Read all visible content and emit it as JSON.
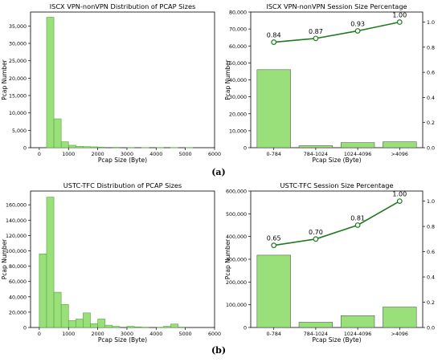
{
  "colors": {
    "bar": "#99e07a",
    "bar_edge": "#58a63d",
    "line": "#1f7a1f"
  },
  "captions": {
    "a": "(a)",
    "b": "(b)"
  },
  "chart_data": [
    {
      "type": "bar",
      "title": "ISCX VPN-nonVPN Distribution of PCAP Sizes",
      "xlabel": "Pcap Size (Byte)",
      "ylabel": "Pcap Number",
      "xlim": [
        -300,
        6000
      ],
      "ylim": [
        0,
        39000
      ],
      "xticks": [
        0,
        1000,
        2000,
        3000,
        4000,
        5000,
        6000
      ],
      "yticks": [
        0,
        5000,
        10000,
        15000,
        20000,
        25000,
        30000,
        35000
      ],
      "ytick_labels": [
        "0",
        "5,000",
        "10,000",
        "15,000",
        "20,000",
        "25,000",
        "30,000",
        "35,000"
      ],
      "bin_width": 250,
      "bins": [
        {
          "x": 250,
          "y": 37500
        },
        {
          "x": 500,
          "y": 8300
        },
        {
          "x": 750,
          "y": 1700
        },
        {
          "x": 1000,
          "y": 700
        },
        {
          "x": 1250,
          "y": 400
        },
        {
          "x": 1500,
          "y": 300
        },
        {
          "x": 1750,
          "y": 250
        },
        {
          "x": 2000,
          "y": 150
        },
        {
          "x": 2500,
          "y": 100
        },
        {
          "x": 3000,
          "y": 60
        },
        {
          "x": 3500,
          "y": 40
        },
        {
          "x": 4000,
          "y": 30
        },
        {
          "x": 4500,
          "y": 20
        },
        {
          "x": 5000,
          "y": 20
        }
      ]
    },
    {
      "type": "bar",
      "title": "ISCX VPN-nonVPN Session Size Percentage",
      "xlabel": "Pcap Size (Byte)",
      "ylabel": "Pcap Number",
      "categories": [
        "0-784",
        "784-1024",
        "1024-4096",
        ">4096"
      ],
      "values": [
        46000,
        1200,
        3000,
        3500
      ],
      "ylim": [
        0,
        80000
      ],
      "yticks": [
        0,
        10000,
        20000,
        30000,
        40000,
        50000,
        60000,
        70000,
        80000
      ],
      "ytick_labels": [
        "0",
        "10,000",
        "20,000",
        "30,000",
        "40,000",
        "50,000",
        "60,000",
        "70,000",
        "80,000"
      ],
      "y2lim": [
        0,
        1.08
      ],
      "y2ticks": [
        0.0,
        0.2,
        0.4,
        0.6,
        0.8,
        1.0
      ],
      "y2tick_labels": [
        "0.0",
        "0.2",
        "0.4",
        "0.6",
        "0.8",
        "1.0"
      ],
      "line_values": [
        0.84,
        0.87,
        0.93,
        1.0
      ],
      "line_labels": [
        "0.84",
        "0.87",
        "0.93",
        "1.00"
      ]
    },
    {
      "type": "bar",
      "title": "USTC-TFC Distribution of PCAP Sizes",
      "xlabel": "Pcap Size (Byte)",
      "ylabel": "Pcap Number",
      "xlim": [
        -300,
        6000
      ],
      "ylim": [
        0,
        178000
      ],
      "xticks": [
        0,
        1000,
        2000,
        3000,
        4000,
        5000,
        6000
      ],
      "yticks": [
        0,
        20000,
        40000,
        60000,
        80000,
        100000,
        120000,
        140000,
        160000
      ],
      "ytick_labels": [
        "0",
        "20,000",
        "40,000",
        "60,000",
        "80,000",
        "100,000",
        "120,000",
        "140,000",
        "160,000"
      ],
      "bin_width": 250,
      "bins": [
        {
          "x": 0,
          "y": 96000
        },
        {
          "x": 250,
          "y": 170000
        },
        {
          "x": 500,
          "y": 46000
        },
        {
          "x": 750,
          "y": 30000
        },
        {
          "x": 1000,
          "y": 9000
        },
        {
          "x": 1250,
          "y": 11000
        },
        {
          "x": 1500,
          "y": 19000
        },
        {
          "x": 1750,
          "y": 5000
        },
        {
          "x": 2000,
          "y": 11000
        },
        {
          "x": 2250,
          "y": 3000
        },
        {
          "x": 2500,
          "y": 1500
        },
        {
          "x": 3000,
          "y": 1500
        },
        {
          "x": 3250,
          "y": 800
        },
        {
          "x": 3500,
          "y": 400
        },
        {
          "x": 4000,
          "y": 300
        },
        {
          "x": 4250,
          "y": 1500
        },
        {
          "x": 4500,
          "y": 4500
        },
        {
          "x": 4750,
          "y": 500
        }
      ]
    },
    {
      "type": "bar",
      "title": "USTC-TFC Session Size Percentage",
      "xlabel": "Pcap Size (Byte)",
      "ylabel": "Pcap Number",
      "categories": [
        "0-784",
        "784-1024",
        "1024-4096",
        ">4096"
      ],
      "values": [
        318000,
        23000,
        52000,
        90000
      ],
      "ylim": [
        0,
        600000
      ],
      "yticks": [
        0,
        100000,
        200000,
        300000,
        400000,
        500000,
        600000
      ],
      "ytick_labels": [
        "0",
        "100,000",
        "200,000",
        "300,000",
        "400,000",
        "500,000",
        "600,000"
      ],
      "y2lim": [
        0,
        1.08
      ],
      "y2ticks": [
        0.0,
        0.2,
        0.4,
        0.6,
        0.8,
        1.0
      ],
      "y2tick_labels": [
        "0.0",
        "0.2",
        "0.4",
        "0.6",
        "0.8",
        "1.0"
      ],
      "line_values": [
        0.65,
        0.7,
        0.81,
        1.0
      ],
      "line_labels": [
        "0.65",
        "0.70",
        "0.81",
        "1.00"
      ]
    }
  ]
}
